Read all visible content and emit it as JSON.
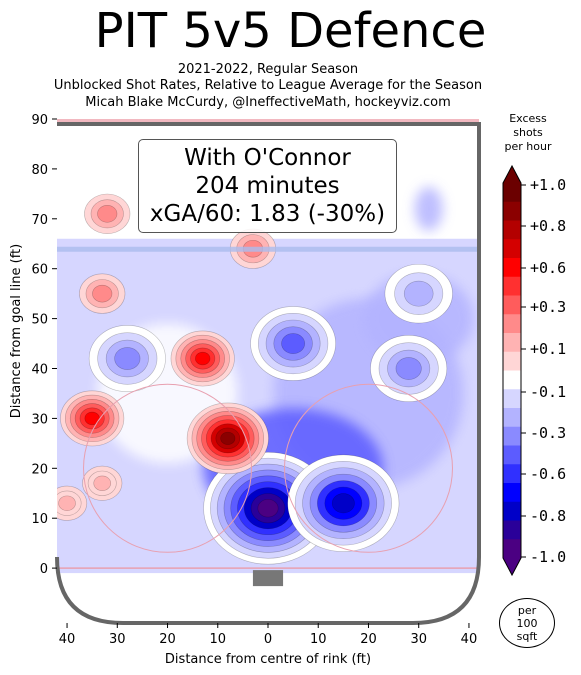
{
  "title": "PIT 5v5 Defence",
  "subtitle_lines": [
    "2021-2022, Regular Season",
    "Unblocked Shot Rates, Relative to League Average for the Season",
    "Micah Blake McCurdy, @IneffectiveMath, hockeyviz.com"
  ],
  "annotation": {
    "line1": "With O'Connor",
    "line2": "204 minutes",
    "line3": "xGA/60: 1.83 (-30%)"
  },
  "colorbar": {
    "title_lines": [
      "Excess",
      "shots",
      "per hour"
    ],
    "tick_labels": [
      "+1.0",
      "+0.8",
      "+0.6",
      "+0.3",
      "+0.1",
      "-0.1",
      "-0.3",
      "-0.6",
      "-0.8",
      "-1.0"
    ],
    "tick_values": [
      1.0,
      0.8,
      0.6,
      0.3,
      0.1,
      -0.1,
      -0.3,
      -0.6,
      -0.8,
      -1.0
    ],
    "colors_top_to_bottom": [
      "#6b0000",
      "#8b0000",
      "#b30000",
      "#d40000",
      "#ff0000",
      "#ff3030",
      "#ff5c5c",
      "#ff8a8a",
      "#ffb3b3",
      "#ffd6d6",
      "#ffffff",
      "#d6d6ff",
      "#b3b3ff",
      "#8a8aff",
      "#5c5cff",
      "#3030ff",
      "#0000ff",
      "#0000c8",
      "#2a0099",
      "#4b0082"
    ]
  },
  "per_area_badge": [
    "per",
    "100",
    "sqft"
  ],
  "chart_data": {
    "type": "heatmap",
    "xlabel": "Distance from centre of rink (ft)",
    "ylabel": "Distance from goal line (ft)",
    "xlim": [
      42,
      -42
    ],
    "ylim": [
      -11,
      90
    ],
    "x_ticks": [
      40,
      30,
      20,
      10,
      0,
      10,
      20,
      30,
      40
    ],
    "y_ticks": [
      0,
      10,
      20,
      30,
      40,
      50,
      60,
      70,
      80,
      90
    ],
    "value_range": [
      -1.0,
      1.0
    ],
    "hot_spots": [
      {
        "x": 8,
        "y": 26,
        "value": 0.9
      },
      {
        "x": 13,
        "y": 42,
        "value": 0.6
      },
      {
        "x": 35,
        "y": 30,
        "value": 0.6
      },
      {
        "x": 32,
        "y": 71,
        "value": 0.3
      },
      {
        "x": 33,
        "y": 55,
        "value": 0.3
      },
      {
        "x": 3,
        "y": 64,
        "value": 0.3
      },
      {
        "x": 40,
        "y": 13,
        "value": 0.2
      },
      {
        "x": 33,
        "y": 17,
        "value": 0.2
      }
    ],
    "cold_spots": [
      {
        "x": 0,
        "y": 12,
        "value": -1.0
      },
      {
        "x": -15,
        "y": 13,
        "value": -0.8
      },
      {
        "x": -5,
        "y": 45,
        "value": -0.5
      },
      {
        "x": -28,
        "y": 40,
        "value": -0.4
      },
      {
        "x": 28,
        "y": 42,
        "value": -0.4
      },
      {
        "x": -30,
        "y": 55,
        "value": -0.3
      }
    ]
  }
}
